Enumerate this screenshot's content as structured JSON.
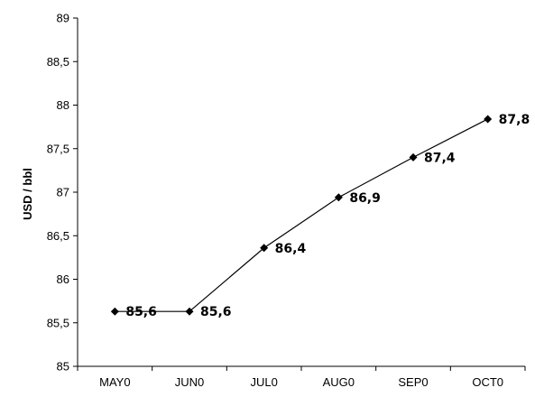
{
  "chart_data": {
    "type": "line",
    "categories": [
      "MAY0",
      "JUN0",
      "JUL0",
      "AUG0",
      "SEP0",
      "OCT0"
    ],
    "series": [
      {
        "values": [
          85.63,
          85.63,
          86.36,
          86.94,
          87.4,
          87.84
        ]
      }
    ],
    "data_labels": [
      "85,6",
      "85,6",
      "86,4",
      "86,9",
      "87,4",
      "87,8"
    ],
    "ylabel": "USD / bbl",
    "ylim": [
      85,
      89
    ],
    "ytick_values": [
      85,
      85.5,
      86,
      86.5,
      87,
      87.5,
      88,
      88.5,
      89
    ],
    "ytick_labels": [
      "85",
      "85,5",
      "86",
      "86,5",
      "87",
      "87,5",
      "88",
      "88,5",
      "89"
    ],
    "grid": false,
    "legend": "none",
    "line_color": "#000000",
    "marker": "diamond"
  }
}
